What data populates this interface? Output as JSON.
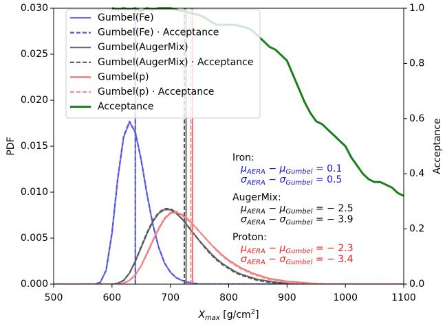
{
  "chart_data": {
    "type": "line",
    "xlabel": [
      "X",
      "max",
      " [g/cm",
      "2",
      "]"
    ],
    "ylabel": "PDF",
    "y2label": "Acceptance",
    "xlim": [
      500,
      1100
    ],
    "ylim": [
      0,
      0.03
    ],
    "y2lim": [
      0,
      1
    ],
    "xticks": [
      500,
      600,
      700,
      800,
      900,
      1000,
      1100
    ],
    "yticks": [
      {
        "value": 0,
        "label": "0.000"
      },
      {
        "value": 0.005,
        "label": "0.005"
      },
      {
        "value": 0.01,
        "label": "0.010"
      },
      {
        "value": 0.015,
        "label": "0.015"
      },
      {
        "value": 0.02,
        "label": "0.020"
      },
      {
        "value": 0.025,
        "label": "0.025"
      },
      {
        "value": 0.03,
        "label": "0.030"
      }
    ],
    "y2ticks": [
      {
        "value": 0,
        "label": "0.0"
      },
      {
        "value": 0.2,
        "label": "0.2"
      },
      {
        "value": 0.4,
        "label": "0.4"
      },
      {
        "value": 0.6,
        "label": "0.6"
      },
      {
        "value": 0.8,
        "label": "0.8"
      },
      {
        "value": 1,
        "label": "1.0"
      }
    ],
    "legend": "upper left",
    "x": [
      500,
      510,
      520,
      530,
      540,
      550,
      560,
      570,
      580,
      590,
      600,
      610,
      620,
      630,
      640,
      650,
      660,
      670,
      680,
      690,
      700,
      710,
      720,
      730,
      740,
      750,
      760,
      770,
      780,
      790,
      800,
      810,
      820,
      830,
      840,
      850,
      860,
      870,
      880,
      890,
      900,
      910,
      920,
      930,
      940,
      950,
      960,
      970,
      980,
      990,
      1000,
      1010,
      1020,
      1030,
      1040,
      1050,
      1060,
      1070,
      1080,
      1090,
      1100
    ],
    "series": [
      {
        "name": "Gumbel(Fe)",
        "color": "#7474ee",
        "dash": false,
        "mean": 640,
        "values": [
          0,
          0,
          0,
          0,
          0,
          0,
          0,
          0,
          0.0002,
          0.0015,
          0.0055,
          0.0115,
          0.016,
          0.0176,
          0.0165,
          0.0135,
          0.0098,
          0.0065,
          0.004,
          0.0023,
          0.0013,
          0.0007,
          0.0004,
          0.0002,
          0.0001,
          0,
          0,
          0,
          0,
          0,
          0,
          0,
          0,
          0,
          0,
          0,
          0,
          0,
          0,
          0,
          0,
          0,
          0,
          0,
          0,
          0,
          0,
          0,
          0,
          0,
          0,
          0,
          0,
          0,
          0,
          0,
          0,
          0,
          0,
          0,
          0
        ]
      },
      {
        "name": "Gumbel(Fe) · Acceptance",
        "color": "#5555dd",
        "dash": true,
        "mean": 640,
        "values": [
          0,
          0,
          0,
          0,
          0,
          0,
          0,
          0,
          0.0002,
          0.0015,
          0.0056,
          0.0116,
          0.0161,
          0.0177,
          0.0165,
          0.0135,
          0.0098,
          0.0065,
          0.004,
          0.0023,
          0.0013,
          0.0007,
          0.0004,
          0.0002,
          0.0001,
          0,
          0,
          0,
          0,
          0,
          0,
          0,
          0,
          0,
          0,
          0,
          0,
          0,
          0,
          0,
          0,
          0,
          0,
          0,
          0,
          0,
          0,
          0,
          0,
          0,
          0,
          0,
          0,
          0,
          0,
          0,
          0,
          0,
          0,
          0,
          0
        ]
      },
      {
        "name": "Gumbel(AugerMix)",
        "color": "#6a6a6a",
        "dash": false,
        "mean": 727,
        "values": [
          0,
          0,
          0,
          0,
          0,
          0,
          0,
          0,
          0,
          0,
          0,
          0.0001,
          0.0004,
          0.0012,
          0.0025,
          0.004,
          0.0055,
          0.0068,
          0.0077,
          0.0081,
          0.0081,
          0.0077,
          0.0071,
          0.0063,
          0.0055,
          0.0047,
          0.004,
          0.0033,
          0.0027,
          0.0022,
          0.0018,
          0.0014,
          0.0011,
          0.0009,
          0.0007,
          0.0005,
          0.0004,
          0.0003,
          0.0002,
          0.00015,
          0.0001,
          0,
          0,
          0,
          0,
          0,
          0,
          0,
          0,
          0,
          0,
          0,
          0,
          0,
          0,
          0,
          0,
          0,
          0,
          0,
          0
        ]
      },
      {
        "name": "Gumbel(AugerMix) · Acceptance",
        "color": "#555555",
        "dash": true,
        "mean": 724,
        "values": [
          0,
          0,
          0,
          0,
          0,
          0,
          0,
          0,
          0,
          0,
          0,
          0.0001,
          0.0004,
          0.0012,
          0.0025,
          0.0041,
          0.0056,
          0.0069,
          0.0078,
          0.0082,
          0.0082,
          0.0078,
          0.0071,
          0.0063,
          0.0055,
          0.0047,
          0.0039,
          0.0032,
          0.0026,
          0.0021,
          0.0017,
          0.0013,
          0.001,
          0.0008,
          0.0006,
          0.0004,
          0.0003,
          0.0002,
          0.00015,
          0.0001,
          0.0001,
          0,
          0,
          0,
          0,
          0,
          0,
          0,
          0,
          0,
          0,
          0,
          0,
          0,
          0,
          0,
          0,
          0,
          0,
          0,
          0
        ]
      },
      {
        "name": "Gumbel(p)",
        "color": "#f07070",
        "dash": false,
        "mean": 738,
        "values": [
          0,
          0,
          0,
          0,
          0,
          0,
          0,
          0,
          0,
          0,
          0,
          0,
          0.0001,
          0.0004,
          0.001,
          0.002,
          0.0033,
          0.0047,
          0.006,
          0.0071,
          0.0077,
          0.0078,
          0.0075,
          0.007,
          0.0064,
          0.0057,
          0.005,
          0.0043,
          0.0037,
          0.0031,
          0.0026,
          0.0022,
          0.0018,
          0.0015,
          0.0012,
          0.001,
          0.0008,
          0.0006,
          0.0005,
          0.0004,
          0.0003,
          0.00025,
          0.0002,
          0.00015,
          0.0001,
          7e-05,
          5e-05,
          3e-05,
          2e-05,
          1e-05,
          0,
          0,
          0,
          0,
          0,
          0,
          0,
          0,
          0,
          0,
          0
        ]
      },
      {
        "name": "Gumbel(p) · Acceptance",
        "color": "#f29090",
        "dash": true,
        "mean": 735,
        "values": [
          0,
          0,
          0,
          0,
          0,
          0,
          0,
          0,
          0,
          0,
          0,
          0,
          0.0001,
          0.0004,
          0.001,
          0.002,
          0.0034,
          0.0048,
          0.0061,
          0.0072,
          0.0078,
          0.0079,
          0.0076,
          0.0071,
          0.0064,
          0.0057,
          0.005,
          0.0043,
          0.0036,
          0.003,
          0.0025,
          0.0021,
          0.0017,
          0.0014,
          0.0011,
          0.0009,
          0.0007,
          0.0005,
          0.0004,
          0.0003,
          0.0002,
          0.00015,
          0.0001,
          0.0001,
          7e-05,
          5e-05,
          3e-05,
          2e-05,
          1e-05,
          1e-05,
          0,
          0,
          0,
          0,
          0,
          0,
          0,
          0,
          0,
          0,
          0
        ]
      },
      {
        "name": "Acceptance",
        "color": "#1a7f1a",
        "dash": false,
        "axis": "y2",
        "values": [
          null,
          null,
          null,
          null,
          null,
          null,
          null,
          null,
          null,
          null,
          1,
          0.995,
          1,
          0.995,
          1,
          0.99,
          1,
          0.995,
          1,
          1,
          1,
          0.995,
          0.99,
          0.985,
          0.98,
          0.975,
          0.965,
          0.95,
          0.94,
          0.94,
          0.94,
          0.94,
          0.935,
          0.93,
          0.92,
          0.9,
          0.88,
          0.86,
          0.85,
          0.83,
          0.81,
          0.76,
          0.71,
          0.66,
          0.62,
          0.59,
          0.58,
          0.56,
          0.54,
          0.52,
          0.5,
          0.46,
          0.43,
          0.4,
          0.38,
          0.37,
          0.37,
          0.36,
          0.35,
          0.33,
          0.32
        ]
      }
    ],
    "annotations": [
      {
        "title": "Iron:",
        "color": "#1414d2",
        "lines": [
          [
            "μ",
            "AERA",
            " − μ",
            "Gumbel",
            " = 0.1"
          ],
          [
            "σ",
            "AERA",
            " − σ",
            "Gumbel",
            " = 0.5"
          ]
        ]
      },
      {
        "title": "AugerMix:",
        "color": "#000000",
        "lines": [
          [
            "μ",
            "AERA",
            " − μ",
            "Gumbel",
            " = − 2.5"
          ],
          [
            "σ",
            "AERA",
            " − σ",
            "Gumbel",
            " = − 3.9"
          ]
        ]
      },
      {
        "title": "Proton:",
        "color": "#ee1a1a",
        "lines": [
          [
            "μ",
            "AERA",
            " − μ",
            "Gumbel",
            " = − 2.3"
          ],
          [
            "σ",
            "AERA",
            " − σ",
            "Gumbel",
            " = − 3.4"
          ]
        ]
      }
    ]
  }
}
